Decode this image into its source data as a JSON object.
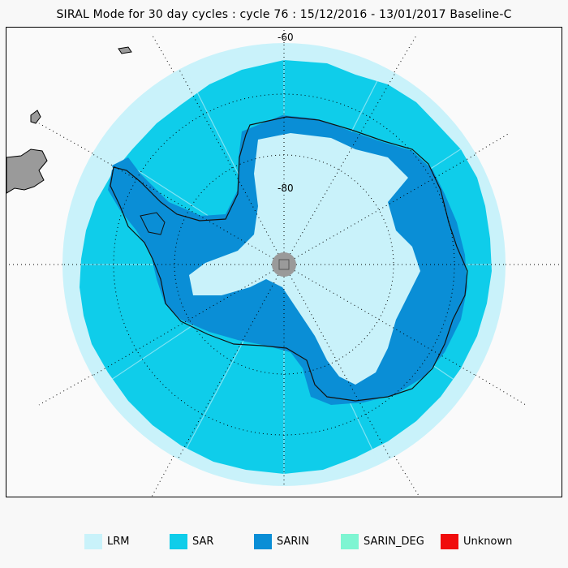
{
  "title": "SIRAL Mode for 30 day cycles : cycle 76 : 15/12/2016 - 13/01/2017 Baseline-C",
  "map": {
    "projection": "south-polar-stereographic",
    "lat_labels": [
      "-60",
      "-80"
    ],
    "graticule": "dotted",
    "pole_marker": "grey disc with square"
  },
  "legend": [
    {
      "label": "LRM",
      "color": "#c9f2fa"
    },
    {
      "label": "SAR",
      "color": "#0fcdea"
    },
    {
      "label": "SARIN",
      "color": "#0a8ed6"
    },
    {
      "label": "SARIN_DEG",
      "color": "#7ef5d2"
    },
    {
      "label": "Unknown",
      "color": "#f00c0c"
    }
  ]
}
